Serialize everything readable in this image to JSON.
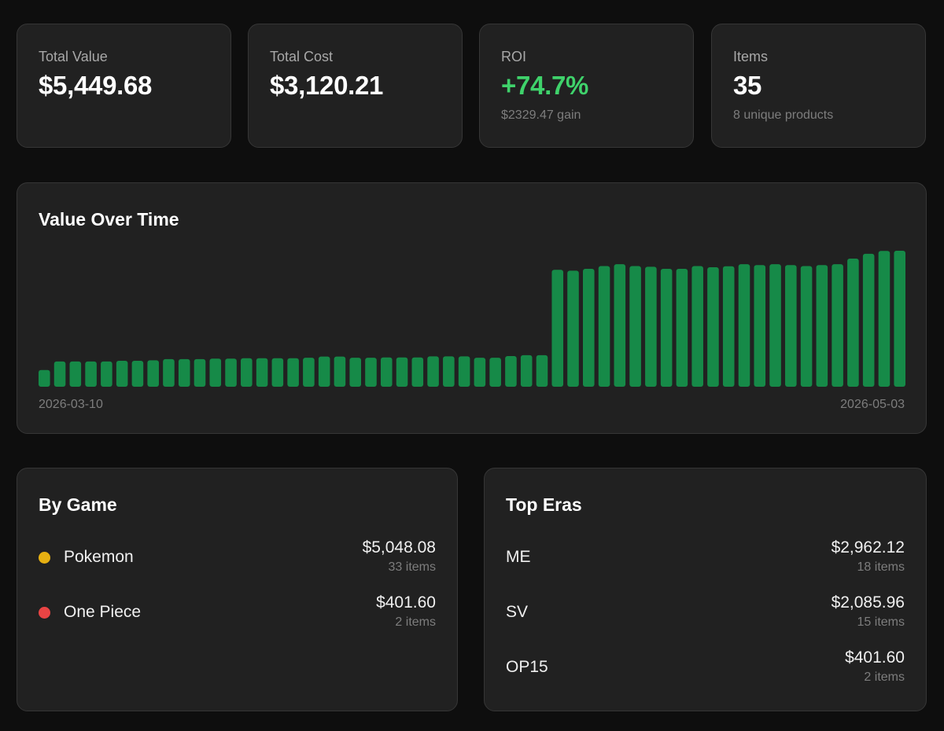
{
  "stats": {
    "total_value": {
      "label": "Total Value",
      "value": "$5,449.68"
    },
    "total_cost": {
      "label": "Total Cost",
      "value": "$3,120.21"
    },
    "roi": {
      "label": "ROI",
      "value": "+74.7%",
      "sub": "$2329.47 gain",
      "color": "#3fd26b"
    },
    "items": {
      "label": "Items",
      "value": "35",
      "sub": "8 unique products"
    }
  },
  "value_chart": {
    "title": "Value Over Time",
    "start_label": "2026-03-10",
    "end_label": "2026-05-03",
    "bar_color": "#168a48"
  },
  "chart_data": {
    "type": "bar",
    "title": "Value Over Time",
    "x_start": "2026-03-10",
    "x_end": "2026-05-03",
    "values": [
      720,
      1090,
      1090,
      1090,
      1090,
      1120,
      1120,
      1140,
      1190,
      1190,
      1190,
      1210,
      1210,
      1230,
      1230,
      1230,
      1230,
      1250,
      1300,
      1300,
      1250,
      1250,
      1260,
      1260,
      1260,
      1310,
      1310,
      1310,
      1250,
      1250,
      1320,
      1360,
      1360,
      5040,
      5000,
      5080,
      5200,
      5280,
      5200,
      5170,
      5080,
      5080,
      5200,
      5150,
      5190,
      5280,
      5240,
      5280,
      5240,
      5200,
      5240,
      5280,
      5520,
      5730,
      5850,
      5860
    ],
    "ylim": [
      0,
      5860
    ]
  },
  "by_game": {
    "title": "By Game",
    "rows": [
      {
        "name": "Pokemon",
        "amount": "$5,048.08",
        "count": "33 items",
        "color": "#e6b012"
      },
      {
        "name": "One Piece",
        "amount": "$401.60",
        "count": "2 items",
        "color": "#e94444"
      }
    ]
  },
  "top_eras": {
    "title": "Top Eras",
    "rows": [
      {
        "name": "ME",
        "amount": "$2,962.12",
        "count": "18 items"
      },
      {
        "name": "SV",
        "amount": "$2,085.96",
        "count": "15 items"
      },
      {
        "name": "OP15",
        "amount": "$401.60",
        "count": "2 items"
      }
    ]
  }
}
